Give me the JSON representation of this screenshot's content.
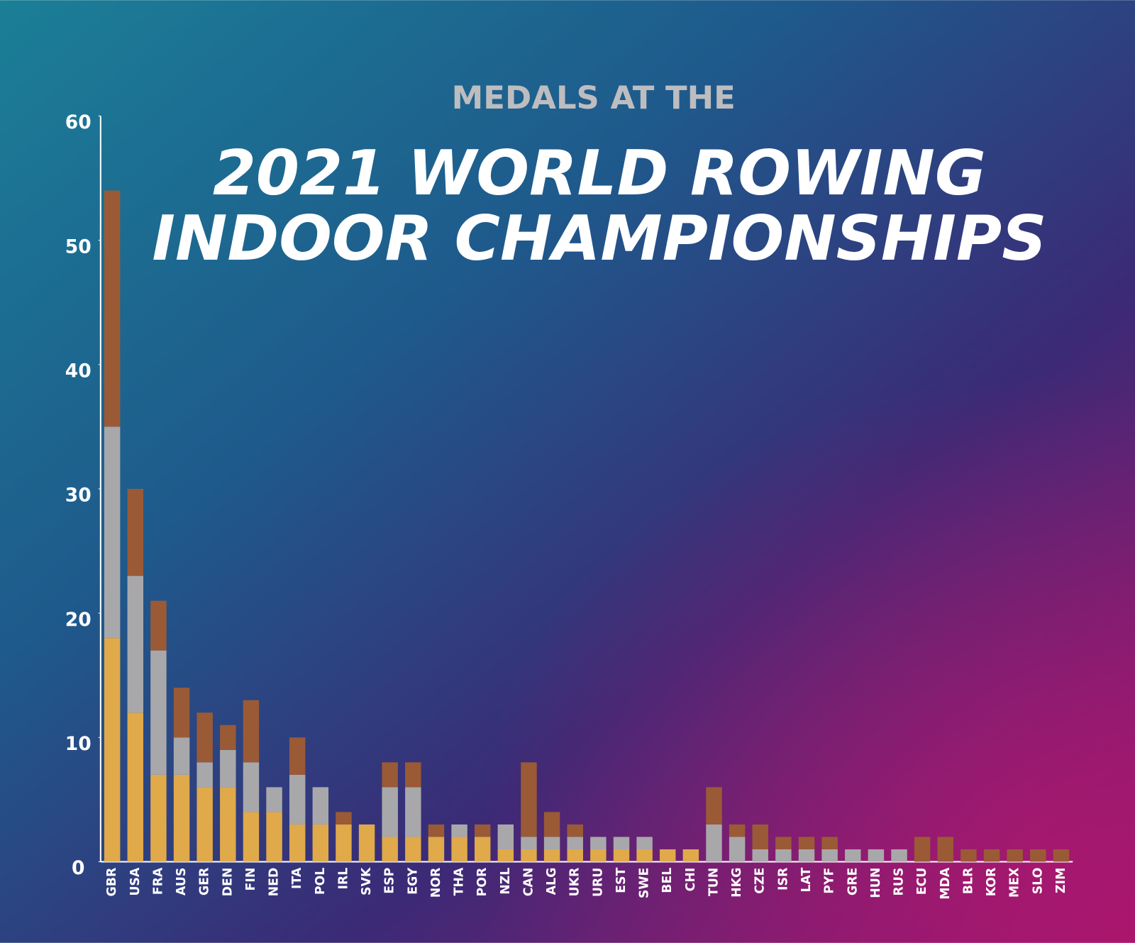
{
  "chart_data": {
    "type": "stacked-bar",
    "supertitle": "MEDALS AT THE",
    "title": "2021 WORLD ROWING INDOOR CHAMPIONSHIPS",
    "categories": [
      "GBR",
      "USA",
      "FRA",
      "AUS",
      "GER",
      "DEN",
      "FIN",
      "NED",
      "ITA",
      "POL",
      "IRL",
      "SVK",
      "ESP",
      "EGY",
      "NOR",
      "THA",
      "POR",
      "NZL",
      "CAN",
      "ALG",
      "UKR",
      "URU",
      "EST",
      "SWE",
      "BEL",
      "CHI",
      "TUN",
      "HKG",
      "CZE",
      "ISR",
      "LAT",
      "PYF",
      "GRE",
      "HUN",
      "RUS",
      "ECU",
      "MDA",
      "BLR",
      "KOR",
      "MEX",
      "SLO",
      "ZIM"
    ],
    "series": [
      {
        "color": "#e0a94a",
        "values": [
          18,
          12,
          7,
          7,
          6,
          6,
          4,
          4,
          3,
          3,
          3,
          3,
          2,
          2,
          2,
          2,
          2,
          1,
          1,
          1,
          1,
          1,
          1,
          1,
          1,
          1,
          0,
          0,
          0,
          0,
          0,
          0,
          0,
          0,
          0,
          0,
          0,
          0,
          0,
          0,
          0,
          0
        ]
      },
      {
        "color": "#a8a8ab",
        "values": [
          17,
          11,
          10,
          3,
          2,
          3,
          4,
          2,
          4,
          3,
          0,
          0,
          4,
          4,
          0,
          1,
          0,
          2,
          1,
          1,
          1,
          1,
          1,
          1,
          0,
          0,
          3,
          2,
          1,
          1,
          1,
          1,
          1,
          1,
          1,
          0,
          0,
          0,
          0,
          0,
          0,
          0
        ]
      },
      {
        "color": "#9a5a36",
        "values": [
          19,
          7,
          4,
          4,
          4,
          2,
          5,
          0,
          3,
          0,
          1,
          0,
          2,
          2,
          1,
          0,
          1,
          0,
          6,
          2,
          1,
          0,
          0,
          0,
          0,
          0,
          3,
          1,
          2,
          1,
          1,
          1,
          0,
          0,
          0,
          2,
          2,
          1,
          1,
          1,
          1,
          1
        ]
      }
    ],
    "ylim": [
      0,
      60
    ],
    "yticks": [
      0,
      10,
      20,
      30,
      40,
      50,
      60
    ]
  }
}
